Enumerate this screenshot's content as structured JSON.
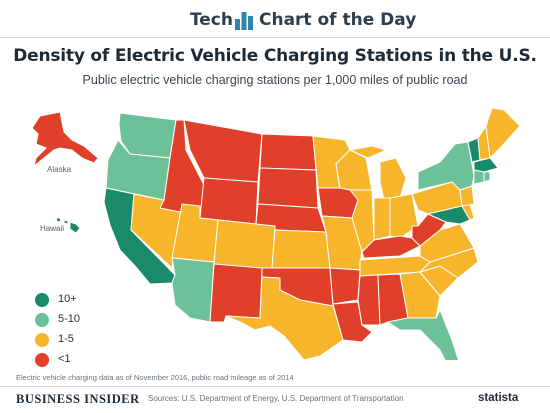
{
  "header": {
    "brand_left": "Tech",
    "brand_right": "Chart of the Day",
    "title": "Density of Electric Vehicle Charging Stations in the U.S.",
    "subtitle": "Public electric vehicle charging stations per 1,000 miles of public road"
  },
  "map": {
    "labels": {
      "alaska": "Alaska",
      "hawaii": "Hawaii"
    },
    "colors": {
      "10+": "#1a8a6a",
      "5-10": "#6cc198",
      "1-5": "#f7b52b",
      "<1": "#e0402a"
    },
    "states": {
      "WA": "5-10",
      "OR": "5-10",
      "CA": "10+",
      "NV": "1-5",
      "ID": "<1",
      "MT": "<1",
      "WY": "<1",
      "UT": "1-5",
      "AZ": "5-10",
      "NM": "<1",
      "CO": "1-5",
      "ND": "<1",
      "SD": "<1",
      "NE": "<1",
      "KS": "1-5",
      "OK": "<1",
      "TX": "1-5",
      "MN": "1-5",
      "IA": "<1",
      "MO": "1-5",
      "AR": "<1",
      "LA": "<1",
      "WI": "1-5",
      "IL": "1-5",
      "MS": "<1",
      "AL": "<1",
      "MI": "1-5",
      "IN": "1-5",
      "KY": "<1",
      "TN": "1-5",
      "OH": "1-5",
      "WV": "<1",
      "VA": "1-5",
      "NC": "1-5",
      "SC": "1-5",
      "GA": "1-5",
      "FL": "5-10",
      "PA": "1-5",
      "NY": "5-10",
      "NJ": "1-5",
      "DE": "1-5",
      "MD": "10+",
      "VT": "10+",
      "NH": "1-5",
      "ME": "1-5",
      "MA": "10+",
      "CT": "5-10",
      "RI": "5-10",
      "AK": "<1",
      "HI": "10+"
    }
  },
  "legend": [
    {
      "label": "10+",
      "color": "#1a8a6a"
    },
    {
      "label": "5-10",
      "color": "#6cc198"
    },
    {
      "label": "1-5",
      "color": "#f7b52b"
    },
    {
      "label": "<1",
      "color": "#e0402a"
    }
  ],
  "footer": {
    "note": "Electric vehicle charging data as of November 2016, public road mileage as of 2014",
    "publisher": "BUSINESS INSIDER",
    "sources": "Sources: U.S. Department of Energy, U.S. Department of Transportation",
    "logo": "statista"
  }
}
